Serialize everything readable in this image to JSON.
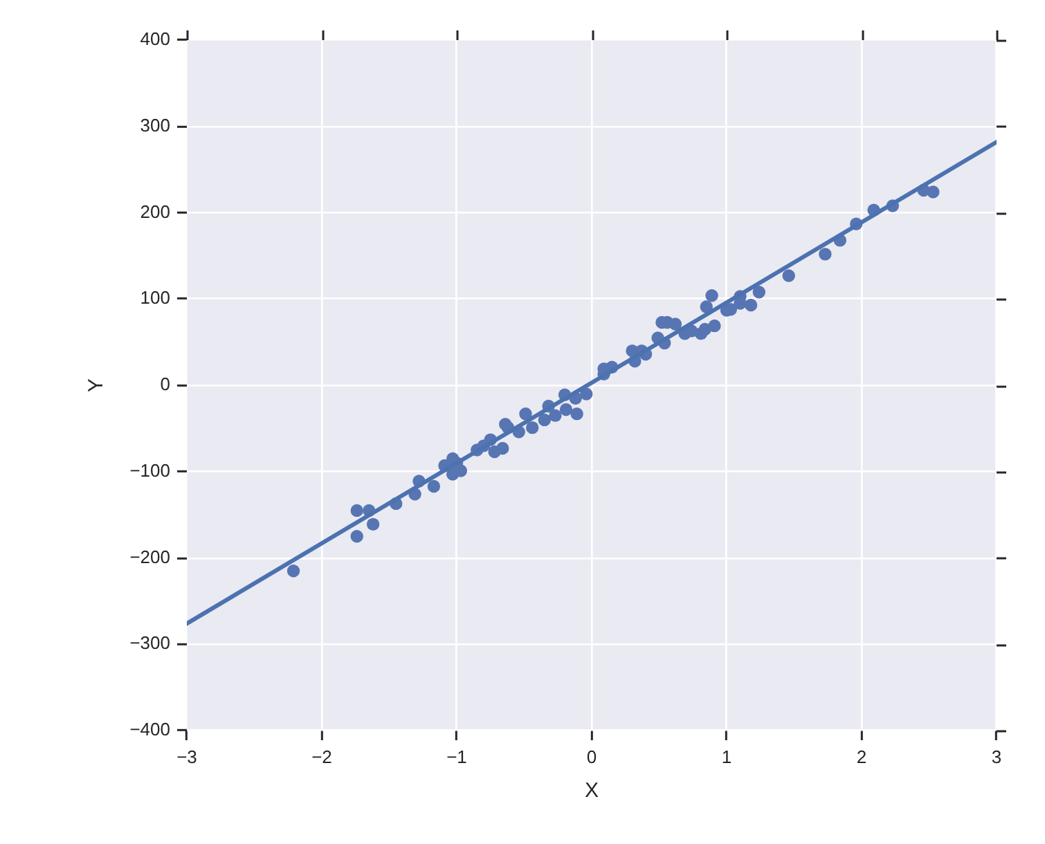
{
  "chart_data": {
    "type": "scatter",
    "xlabel": "X",
    "ylabel": "Y",
    "xlim": [
      -3,
      3
    ],
    "xticks": [
      {
        "value": -3,
        "label": "−3"
      },
      {
        "value": -2,
        "label": "−2"
      },
      {
        "value": -1,
        "label": "−1"
      },
      0,
      1,
      2,
      3
    ],
    "ylim": [
      -400,
      400
    ],
    "yticks": [
      {
        "value": -400,
        "label": "−400"
      },
      {
        "value": -300,
        "label": "−300"
      },
      {
        "value": -200,
        "label": "−200"
      },
      {
        "value": -100,
        "label": "−100"
      },
      0,
      100,
      200,
      300,
      400
    ],
    "grid": true,
    "legend": false,
    "series": [
      {
        "marker": "circle",
        "color": "#5775b3",
        "x": [
          -2.21,
          -1.74,
          -1.65,
          -1.62,
          -1.74,
          -1.45,
          -1.31,
          -1.28,
          -1.17,
          -1.09,
          -1.03,
          -1.0,
          -1.03,
          -0.97,
          -0.85,
          -0.8,
          -0.75,
          -0.72,
          -0.66,
          -0.64,
          -0.62,
          -0.54,
          -0.49,
          -0.44,
          -0.35,
          -0.32,
          -0.27,
          -0.2,
          -0.19,
          -0.11,
          -0.12,
          -0.04,
          0.09,
          0.15,
          0.09,
          0.3,
          0.32,
          0.37,
          0.4,
          0.49,
          0.54,
          0.52,
          0.56,
          0.62,
          0.69,
          0.74,
          0.81,
          0.84,
          0.91,
          0.85,
          0.89,
          1.0,
          1.03,
          1.1,
          1.1,
          1.18,
          1.24,
          1.46,
          1.73,
          1.84,
          1.96,
          2.09,
          2.23,
          2.46,
          2.53
        ],
        "values": [
          -215,
          -145,
          -145,
          -161,
          -175,
          -137,
          -126,
          -111,
          -117,
          -93,
          -85,
          -90,
          -103,
          -99,
          -75,
          -70,
          -63,
          -77,
          -73,
          -45,
          -49,
          -54,
          -33,
          -49,
          -40,
          -24,
          -35,
          -11,
          -28,
          -33,
          -15,
          -10,
          13,
          21,
          19,
          40,
          28,
          40,
          36,
          55,
          49,
          73,
          73,
          71,
          60,
          63,
          60,
          65,
          69,
          91,
          104,
          87,
          88,
          95,
          103,
          93,
          108,
          127,
          152,
          168,
          187,
          203,
          208,
          226,
          224
        ]
      },
      {
        "type": "line",
        "marker": "none",
        "line_style": "solid",
        "color": "#4c72b0",
        "x": [
          -3,
          3
        ],
        "values": [
          -276,
          282
        ]
      }
    ]
  }
}
